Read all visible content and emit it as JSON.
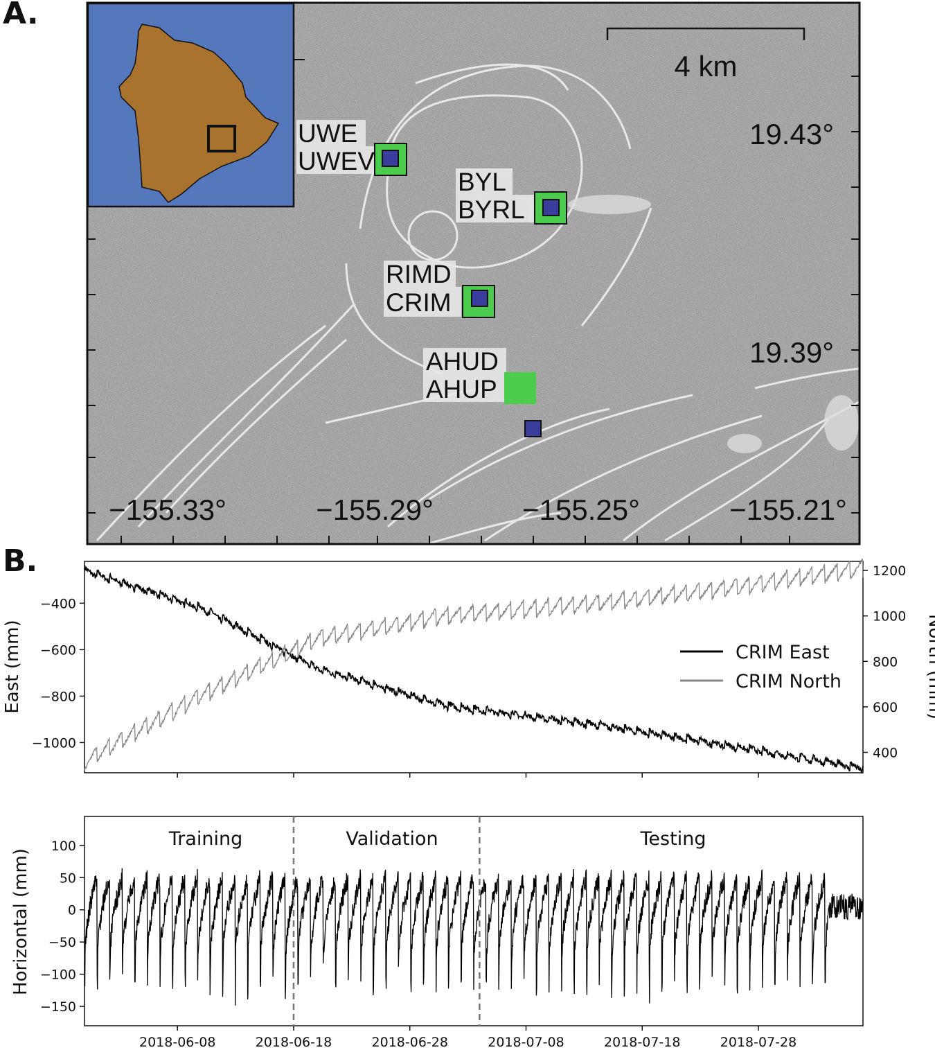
{
  "panel_a": {
    "label": "A.",
    "scale_bar": "4 km",
    "lat_labels": [
      "19.43°",
      "19.39°"
    ],
    "lon_labels": [
      "−155.33°",
      "−155.29°",
      "−155.25°",
      "−155.21°"
    ],
    "stations": [
      {
        "line1": "UWE",
        "line2": "UWEV"
      },
      {
        "line1": "BYL",
        "line2": "BYRL"
      },
      {
        "line1": "RIMD",
        "line2": "CRIM"
      },
      {
        "line1": "AHUD",
        "line2": "AHUP"
      }
    ],
    "colors": {
      "ocean": "#5577bb",
      "land": "#a8732f",
      "green_marker": "#4ccc4c",
      "blue_marker": "#3a3d9c",
      "terrain": "#8c8c8c"
    }
  },
  "panel_b": {
    "label": "B."
  },
  "chart_data": [
    {
      "type": "line",
      "xrange": [
        "2018-05-31",
        "2018-08-06"
      ],
      "left_axis": {
        "label": "East (mm)",
        "ticks": [
          -400,
          -600,
          -800,
          -1000
        ],
        "ylim": [
          -1130,
          -220
        ]
      },
      "right_axis": {
        "label": "North (mm)",
        "ticks": [
          1200,
          1000,
          800,
          600,
          400
        ],
        "ylim": [
          310,
          1240
        ]
      },
      "legend_position": "center-right",
      "series": [
        {
          "name": "CRIM East",
          "axis": "left",
          "color": "#000000",
          "x": [
            "2018-05-31",
            "2018-06-10",
            "2018-06-20",
            "2018-07-01",
            "2018-07-15",
            "2018-07-25",
            "2018-08-06"
          ],
          "values": [
            -260,
            -420,
            -680,
            -840,
            -930,
            -1010,
            -1110
          ]
        },
        {
          "name": "CRIM North",
          "axis": "right",
          "color": "#888888",
          "x": [
            "2018-05-31",
            "2018-06-10",
            "2018-06-20",
            "2018-07-01",
            "2018-07-15",
            "2018-07-25",
            "2018-08-06"
          ],
          "values": [
            360,
            650,
            900,
            1000,
            1060,
            1120,
            1210
          ]
        }
      ]
    },
    {
      "type": "line",
      "xlabel": "",
      "ylabel": "Horizontal (mm)",
      "yticks": [
        100,
        50,
        0,
        -50,
        -100,
        -150
      ],
      "ylim": [
        -180,
        145
      ],
      "xticks": [
        "2018-06-08",
        "2018-06-18",
        "2018-06-28",
        "2018-07-08",
        "2018-07-18",
        "2018-07-28"
      ],
      "xrange": [
        "2018-05-31",
        "2018-08-06"
      ],
      "splits": [
        {
          "label": "Training",
          "end": "2018-06-18"
        },
        {
          "label": "Validation",
          "end": "2018-07-04"
        },
        {
          "label": "Testing",
          "end": "2018-08-06"
        }
      ],
      "series": [
        {
          "color": "#000000",
          "pattern": "sawtooth, ~60 cycles, peaks ~50 mm, troughs ~-100 mm"
        }
      ]
    }
  ]
}
